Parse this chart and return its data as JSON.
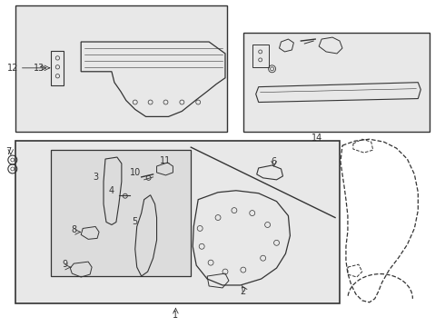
{
  "bg": "#f5f5f5",
  "white": "#ffffff",
  "lc": "#333333",
  "box_fill": "#e8e8e8",
  "inner_fill": "#dcdcdc"
}
